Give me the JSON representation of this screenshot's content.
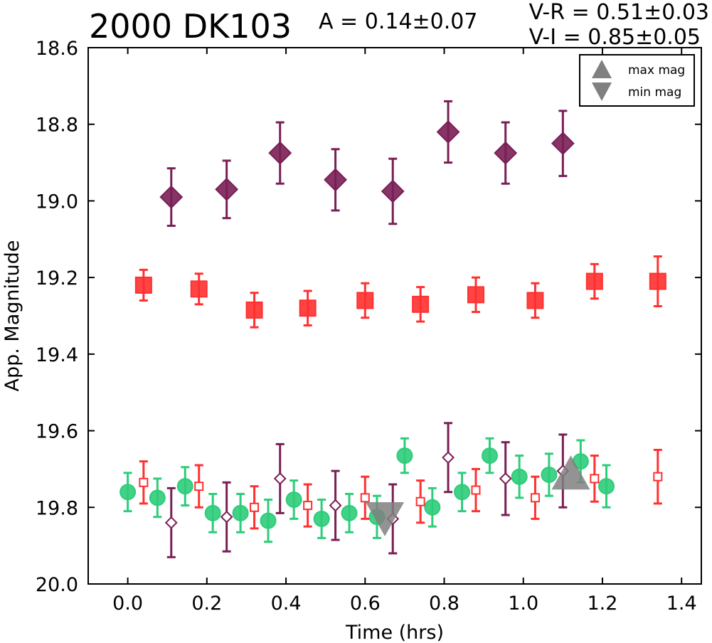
{
  "header": {
    "object_name": "2000 DK103",
    "amplitude": "A  = 0.14±0.07",
    "v_r": "V-R = 0.51±0.03",
    "v_i": "V-I  = 0.85±0.05"
  },
  "chart_data": {
    "type": "scatter",
    "xlabel": "Time (hrs)",
    "ylabel": "App. Magnitude",
    "xlim": [
      -0.1,
      1.45
    ],
    "ylim": [
      20.0,
      18.6
    ],
    "y_inverted": true,
    "xticks": [
      "0.0",
      "0.2",
      "0.4",
      "0.6",
      "0.8",
      "1.0",
      "1.2",
      "1.4"
    ],
    "yticks": [
      "18.6",
      "18.8",
      "19.0",
      "19.2",
      "19.4",
      "19.6",
      "19.8",
      "20.0"
    ],
    "grid": false,
    "legend": {
      "placement": "top-right",
      "entries": [
        {
          "label": "max mag",
          "marker": "triangle-up"
        },
        {
          "label": "min mag",
          "marker": "triangle-down"
        }
      ]
    },
    "colors": {
      "purple": "#7a1f55",
      "red": "#ff3030",
      "green": "#2ecc7a",
      "gray": "#808080"
    },
    "series": [
      {
        "marker": "diamond",
        "filled": true,
        "color": "#7a1f55",
        "x": [
          0.11,
          0.25,
          0.385,
          0.525,
          0.67,
          0.81,
          0.955,
          1.1
        ],
        "y": [
          18.99,
          18.97,
          18.875,
          18.945,
          18.975,
          18.82,
          18.875,
          18.85
        ],
        "err": [
          0.075,
          0.075,
          0.08,
          0.08,
          0.085,
          0.08,
          0.08,
          0.085
        ]
      },
      {
        "marker": "square",
        "filled": true,
        "color": "#ff3030",
        "x": [
          0.04,
          0.18,
          0.32,
          0.455,
          0.6,
          0.74,
          0.88,
          1.03,
          1.18,
          1.34
        ],
        "y": [
          19.22,
          19.23,
          19.285,
          19.28,
          19.26,
          19.27,
          19.245,
          19.26,
          19.21,
          19.21
        ],
        "err": [
          0.04,
          0.04,
          0.045,
          0.045,
          0.045,
          0.045,
          0.045,
          0.045,
          0.045,
          0.065
        ]
      },
      {
        "marker": "circle",
        "filled": true,
        "color": "#2ecc7a",
        "x": [
          0.0,
          0.075,
          0.145,
          0.215,
          0.285,
          0.355,
          0.42,
          0.49,
          0.56,
          0.63,
          0.7,
          0.77,
          0.845,
          0.915,
          0.99,
          1.065,
          1.145,
          1.21
        ],
        "y": [
          19.76,
          19.775,
          19.745,
          19.815,
          19.815,
          19.835,
          19.78,
          19.83,
          19.815,
          19.825,
          19.665,
          19.8,
          19.76,
          19.665,
          19.72,
          19.715,
          19.68,
          19.745
        ],
        "err": [
          0.05,
          0.05,
          0.05,
          0.05,
          0.05,
          0.055,
          0.05,
          0.05,
          0.05,
          0.055,
          0.045,
          0.05,
          0.05,
          0.045,
          0.055,
          0.055,
          0.055,
          0.055
        ]
      },
      {
        "marker": "square",
        "filled": false,
        "color": "#ff3030",
        "x": [
          0.04,
          0.18,
          0.32,
          0.455,
          0.6,
          0.74,
          0.88,
          1.03,
          1.18,
          1.34
        ],
        "y": [
          19.735,
          19.745,
          19.8,
          19.795,
          19.775,
          19.785,
          19.755,
          19.775,
          19.725,
          19.72
        ],
        "err": [
          0.055,
          0.055,
          0.055,
          0.055,
          0.055,
          0.055,
          0.055,
          0.055,
          0.06,
          0.07
        ]
      },
      {
        "marker": "diamond",
        "filled": false,
        "color": "#7a1f55",
        "x": [
          0.11,
          0.25,
          0.385,
          0.525,
          0.67,
          0.81,
          0.955,
          1.1
        ],
        "y": [
          19.84,
          19.825,
          19.725,
          19.795,
          19.83,
          19.67,
          19.725,
          19.705
        ],
        "err": [
          0.09,
          0.09,
          0.09,
          0.09,
          0.09,
          0.09,
          0.095,
          0.095
        ]
      }
    ],
    "annotations": [
      {
        "label": "max mag",
        "x": 1.12,
        "y": 19.72
      },
      {
        "label": "min mag",
        "x": 0.65,
        "y": 19.82
      }
    ]
  }
}
